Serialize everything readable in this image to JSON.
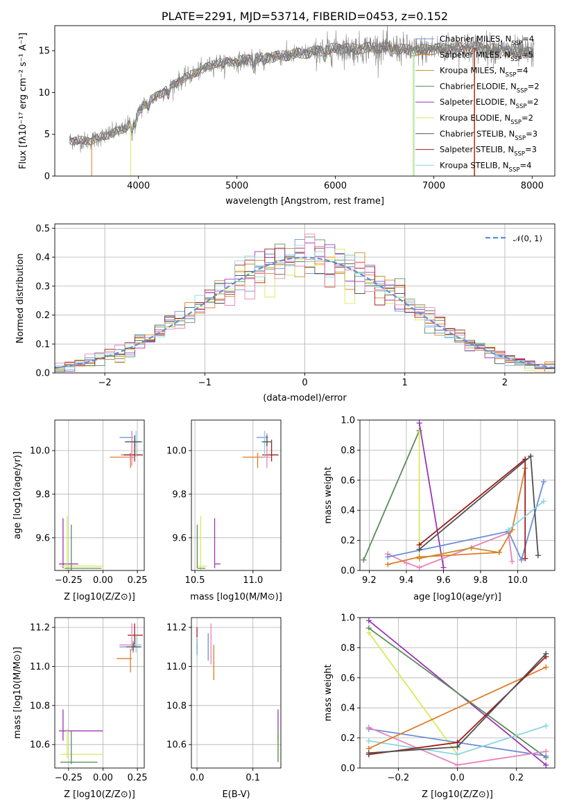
{
  "palette": {
    "chab_miles": "#6a8fd8",
    "salp_miles": "#e07b28",
    "krou_miles": "#c68c22",
    "chab_elodie": "#5b8a5b",
    "salp_elodie": "#9b35b5",
    "krou_elodie": "#d7ea5a",
    "chab_stelib": "#505050",
    "salp_stelib": "#a01c1c",
    "krou_stelib": "#88d6df",
    "pink": "#e882b9",
    "gauss": "#5b8fd6"
  },
  "chart_data": [
    {
      "id": "spectrum",
      "type": "line",
      "title": "PLATE=2291, MJD=53714, FIBERID=0453, z=0.152",
      "xlabel": "wavelength [Angstrom, rest frame]",
      "ylabel": "Flux [fλ10⁻¹⁷ erg cm⁻² s⁻¹ A⁻¹]",
      "xlim": [
        3150,
        8230
      ],
      "ylim": [
        0,
        18
      ],
      "xticks": [
        4000,
        5000,
        6000,
        7000,
        8000
      ],
      "yticks": [
        0,
        5,
        10,
        15
      ],
      "grid": false,
      "legend_position": "top-right",
      "continuum": {
        "x": [
          3300,
          3500,
          3700,
          3850,
          3950,
          4050,
          4200,
          4400,
          4600,
          4800,
          5000,
          5200,
          5400,
          5600,
          5800,
          6000,
          6200,
          6400,
          6600,
          6800,
          7000,
          7200,
          7400,
          7600,
          7800,
          8000
        ],
        "y": [
          4.3,
          4.2,
          5.0,
          5.6,
          6.8,
          8.5,
          9.7,
          11.3,
          12.5,
          13.6,
          13.7,
          14.1,
          14.3,
          14.6,
          14.9,
          15.3,
          15.2,
          15.4,
          15.3,
          15.0,
          15.2,
          15.3,
          15.4,
          15.2,
          14.9,
          14.7
        ]
      },
      "series": [
        {
          "name": "Chabrier MILES, N_SSP=4",
          "color": "chab_miles"
        },
        {
          "name": "Salpeter MILES, N_SSP=5",
          "color": "salp_miles"
        },
        {
          "name": "Kroupa MILES, N_SSP=4",
          "color": "krou_miles"
        },
        {
          "name": "Chabrier ELODIE, N_SSP=2",
          "color": "chab_elodie"
        },
        {
          "name": "Salpeter ELODIE, N_SSP=2",
          "color": "salp_elodie"
        },
        {
          "name": "Kroupa ELODIE, N_SSP=2",
          "color": "krou_elodie"
        },
        {
          "name": "Chabrier STELIB, N_SSP=3",
          "color": "chab_stelib"
        },
        {
          "name": "Salpeter STELIB, N_SSP=3",
          "color": "salp_stelib"
        },
        {
          "name": "Kroupa STELIB, N_SSP=4",
          "color": "krou_stelib"
        }
      ]
    },
    {
      "id": "residuals",
      "type": "line",
      "xlabel": "(data-model)/error",
      "ylabel": "Normed distribution",
      "xlim": [
        -2.5,
        2.5
      ],
      "ylim": [
        0,
        0.515
      ],
      "xticks": [
        -2,
        -1,
        0,
        1,
        2
      ],
      "yticks": [
        0,
        0.1,
        0.2,
        0.3,
        0.4,
        0.5
      ],
      "grid": true,
      "legend_position": "top-right",
      "gaussian_label": "𝒩(0, 1)",
      "bin_width": 0.1
    },
    {
      "id": "age_vs_Z",
      "type": "scatter",
      "xlabel": "Z [log10(Z/Z⊙)]",
      "ylabel": "age  [log10(age/yr)]",
      "xlim": [
        -0.35,
        0.3
      ],
      "ylim": [
        9.45,
        10.14
      ],
      "xticks": [
        -0.25,
        0.0,
        0.25
      ],
      "yticks": [
        9.6,
        9.8,
        10.0
      ],
      "grid": true,
      "points": [
        {
          "color": "chab_miles",
          "x": 0.21,
          "y": 10.06,
          "xerr": [
            0.09,
            0.01
          ],
          "yerr": [
            0.04,
            0.03
          ]
        },
        {
          "color": "salp_miles",
          "x": 0.2,
          "y": 9.97,
          "xerr": [
            0.15,
            0.02
          ],
          "yerr": [
            0.05,
            0.02
          ]
        },
        {
          "color": "krou_miles",
          "x": 0.21,
          "y": 9.98,
          "xerr": [
            0.08,
            0.03
          ],
          "yerr": [
            0.02,
            0.04
          ]
        },
        {
          "color": "salp_stelib",
          "x": 0.23,
          "y": 9.98,
          "xerr": [
            0.08,
            0.06
          ],
          "yerr": [
            0.03,
            0.07
          ]
        },
        {
          "color": "pink",
          "x": 0.21,
          "y": 9.97,
          "xerr": [
            0.06,
            0.02
          ],
          "yerr": [
            0.04,
            0.11
          ]
        },
        {
          "color": "krou_stelib",
          "x": 0.24,
          "y": 10.04,
          "xerr": [
            0.03,
            0.05
          ],
          "yerr": [
            0.07,
            0.05
          ]
        },
        {
          "color": "chab_stelib",
          "x": 0.23,
          "y": 10.04,
          "xerr": [
            0.07,
            0.05
          ],
          "yerr": [
            0.02,
            0.03
          ]
        },
        {
          "color": "salp_elodie",
          "x": -0.29,
          "y": 9.48,
          "xerr": [
            0.03,
            0.11
          ],
          "yerr": [
            0.02,
            0.21
          ]
        },
        {
          "color": "krou_elodie",
          "x": -0.26,
          "y": 9.47,
          "xerr": [
            0.05,
            0.26
          ],
          "yerr": [
            0.02,
            0.23
          ]
        },
        {
          "color": "chab_elodie",
          "x": -0.23,
          "y": 9.46,
          "xerr": [
            0.05,
            0.22
          ],
          "yerr": [
            0.01,
            0.2
          ]
        }
      ]
    },
    {
      "id": "age_vs_mass",
      "type": "scatter",
      "xlabel": "mass [log10(M/M⊙)]",
      "ylabel": "",
      "xlim": [
        10.47,
        11.24
      ],
      "ylim": [
        9.45,
        10.14
      ],
      "xticks": [
        10.5,
        11.0
      ],
      "yticks": [
        9.6,
        9.8,
        10.0
      ],
      "grid": true,
      "points": [
        {
          "color": "chab_miles",
          "x": 11.1,
          "y": 10.06,
          "xerr": [
            0.07,
            0.03
          ],
          "yerr": [
            0.04,
            0.03
          ]
        },
        {
          "color": "salp_miles",
          "x": 11.04,
          "y": 9.97,
          "xerr": [
            0.13,
            0.05
          ],
          "yerr": [
            0.05,
            0.02
          ]
        },
        {
          "color": "salp_stelib",
          "x": 11.16,
          "y": 9.98,
          "xerr": [
            0.08,
            0.06
          ],
          "yerr": [
            0.03,
            0.07
          ]
        },
        {
          "color": "pink",
          "x": 11.12,
          "y": 9.97,
          "xerr": [
            0.03,
            0.03
          ],
          "yerr": [
            0.05,
            0.11
          ]
        },
        {
          "color": "krou_stelib",
          "x": 11.1,
          "y": 10.04,
          "xerr": [
            0.03,
            0.06
          ],
          "yerr": [
            0.07,
            0.05
          ]
        },
        {
          "color": "chab_stelib",
          "x": 11.12,
          "y": 10.04,
          "xerr": [
            0.04,
            0.04
          ],
          "yerr": [
            0.02,
            0.03
          ]
        },
        {
          "color": "salp_elodie",
          "x": 10.67,
          "y": 9.48,
          "xerr": [
            0.0,
            0.05
          ],
          "yerr": [
            0.02,
            0.21
          ]
        },
        {
          "color": "krou_elodie",
          "x": 10.55,
          "y": 9.47,
          "xerr": [
            0.03,
            0.05
          ],
          "yerr": [
            0.02,
            0.23
          ]
        },
        {
          "color": "chab_elodie",
          "x": 10.52,
          "y": 9.46,
          "xerr": [
            0.0,
            0.07
          ],
          "yerr": [
            0.0,
            0.2
          ]
        }
      ]
    },
    {
      "id": "weight_vs_age",
      "type": "line",
      "xlabel": "age  [log10(age/yr)]",
      "ylabel": "mass weight",
      "xlim": [
        9.15,
        10.2
      ],
      "ylim": [
        0,
        1.0
      ],
      "xticks": [
        9.2,
        9.4,
        9.6,
        9.8,
        10.0
      ],
      "yticks": [
        0.0,
        0.2,
        0.4,
        0.6,
        0.8,
        1.0
      ],
      "grid": true,
      "series": [
        {
          "color": "chab_elodie",
          "x": [
            9.17,
            9.47
          ],
          "y": [
            0.07,
            0.93
          ]
        },
        {
          "color": "krou_elodie",
          "x": [
            9.47,
            9.47
          ],
          "y": [
            0.08,
            0.92
          ]
        },
        {
          "color": "salp_elodie",
          "x": [
            9.47,
            9.6
          ],
          "y": [
            0.98,
            0.02
          ]
        },
        {
          "color": "pink",
          "x": [
            9.3,
            9.4,
            9.47,
            9.95,
            9.97
          ],
          "y": [
            0.11,
            0.05,
            0.02,
            0.25,
            0.06
          ]
        },
        {
          "color": "chab_miles",
          "x": [
            9.3,
            9.95,
            10.02,
            10.14
          ],
          "y": [
            0.09,
            0.26,
            0.07,
            0.59
          ]
        },
        {
          "color": "salp_miles",
          "x": [
            9.3,
            9.47,
            9.9,
            9.97,
            10.04
          ],
          "y": [
            0.04,
            0.09,
            0.12,
            0.27,
            0.68
          ]
        },
        {
          "color": "krou_miles",
          "x": [
            9.47,
            9.75,
            9.9
          ],
          "y": [
            0.08,
            0.15,
            0.12
          ]
        },
        {
          "color": "salp_stelib",
          "x": [
            9.47,
            10.04,
            10.04
          ],
          "y": [
            0.17,
            0.74,
            0.08
          ]
        },
        {
          "color": "chab_stelib",
          "x": [
            9.47,
            10.07,
            10.11
          ],
          "y": [
            0.14,
            0.76,
            0.1
          ]
        },
        {
          "color": "krou_stelib",
          "x": [
            9.95,
            10.14
          ],
          "y": [
            0.27,
            0.46
          ]
        }
      ]
    },
    {
      "id": "mass_vs_Z",
      "type": "scatter",
      "xlabel": "Z [log10(Z/Z⊙)]",
      "ylabel": "mass [log10(M/M⊙)]",
      "xlim": [
        -0.35,
        0.3
      ],
      "ylim": [
        10.48,
        11.25
      ],
      "xticks": [
        -0.25,
        0.0,
        0.25
      ],
      "yticks": [
        10.6,
        10.8,
        11.0,
        11.2
      ],
      "grid": true,
      "points": [
        {
          "color": "chab_miles",
          "x": 0.22,
          "y": 11.1,
          "xerr": [
            0.1,
            0.05
          ],
          "yerr": [
            0.03,
            0.03
          ]
        },
        {
          "color": "salp_miles",
          "x": 0.2,
          "y": 11.04,
          "xerr": [
            0.1,
            0.01
          ],
          "yerr": [
            0.07,
            0.05
          ]
        },
        {
          "color": "salp_stelib",
          "x": 0.23,
          "y": 11.16,
          "xerr": [
            0.05,
            0.06
          ],
          "yerr": [
            0.06,
            0.06
          ]
        },
        {
          "color": "pink",
          "x": 0.21,
          "y": 11.11,
          "xerr": [
            0.09,
            0.02
          ],
          "yerr": [
            0.03,
            0.11
          ]
        },
        {
          "color": "krou_stelib",
          "x": 0.24,
          "y": 11.11,
          "xerr": [
            0.03,
            0.04
          ],
          "yerr": [
            0.04,
            0.05
          ]
        },
        {
          "color": "chab_stelib",
          "x": 0.22,
          "y": 11.1,
          "xerr": [
            0.05,
            0.06
          ],
          "yerr": [
            0.02,
            0.02
          ]
        },
        {
          "color": "salp_elodie",
          "x": -0.29,
          "y": 10.67,
          "xerr": [
            0.03,
            0.29
          ],
          "yerr": [
            0.05,
            0.11
          ]
        },
        {
          "color": "krou_elodie",
          "x": -0.26,
          "y": 10.55,
          "xerr": [
            0.05,
            0.26
          ],
          "yerr": [
            0.02,
            0.13
          ]
        },
        {
          "color": "chab_elodie",
          "x": -0.23,
          "y": 10.51,
          "xerr": [
            0.08,
            0.19
          ],
          "yerr": [
            0.01,
            0.16
          ]
        }
      ]
    },
    {
      "id": "mass_vs_EBV",
      "type": "scatter",
      "xlabel": "E(B-V)",
      "ylabel": "",
      "xlim": [
        -0.01,
        0.15
      ],
      "ylim": [
        10.48,
        11.25
      ],
      "xticks": [
        0.0,
        0.1
      ],
      "yticks": [
        10.6,
        10.8,
        11.0,
        11.2
      ],
      "grid": true,
      "points": [
        {
          "color": "chab_miles",
          "x": 0.0,
          "y": 11.1,
          "xerr": [
            0,
            0
          ],
          "yerr": [
            0.04,
            0.04
          ]
        },
        {
          "color": "salp_stelib",
          "x": 0.0,
          "y": 11.13,
          "xerr": [
            0,
            0
          ],
          "yerr": [
            0.07,
            0.07
          ]
        },
        {
          "color": "chab_stelib",
          "x": 0.0,
          "y": 11.1,
          "xerr": [
            0,
            0
          ],
          "yerr": [
            0.02,
            0.02
          ]
        },
        {
          "color": "krou_stelib",
          "x": 0.0,
          "y": 11.1,
          "xerr": [
            0,
            0
          ],
          "yerr": [
            0.05,
            0.05
          ]
        },
        {
          "color": "chab_miles",
          "x": 0.02,
          "y": 11.1,
          "xerr": [
            0,
            0
          ],
          "yerr": [
            0.07,
            0.07
          ]
        },
        {
          "color": "pink",
          "x": 0.025,
          "y": 11.11,
          "xerr": [
            0,
            0
          ],
          "yerr": [
            0.1,
            0.11
          ]
        },
        {
          "color": "salp_miles",
          "x": 0.03,
          "y": 11.04,
          "xerr": [
            0,
            0
          ],
          "yerr": [
            0.11,
            0.07
          ]
        },
        {
          "color": "salp_elodie",
          "x": 0.145,
          "y": 10.67,
          "xerr": [
            0,
            0
          ],
          "yerr": [
            0.05,
            0.11
          ]
        },
        {
          "color": "krou_elodie",
          "x": 0.145,
          "y": 10.55,
          "xerr": [
            0,
            0
          ],
          "yerr": [
            0.03,
            0.12
          ]
        },
        {
          "color": "chab_elodie",
          "x": 0.145,
          "y": 10.51,
          "xerr": [
            0,
            0
          ],
          "yerr": [
            0.0,
            0.16
          ]
        }
      ]
    },
    {
      "id": "weight_vs_Z",
      "type": "line",
      "xlabel": "Z [log10(Z/Z⊙)]",
      "ylabel": "mass weight",
      "xlim": [
        -0.33,
        0.33
      ],
      "ylim": [
        0,
        1.0
      ],
      "xticks": [
        -0.2,
        0.0,
        0.2
      ],
      "yticks": [
        0.0,
        0.2,
        0.4,
        0.6,
        0.8,
        1.0
      ],
      "grid": true,
      "series": [
        {
          "color": "salp_elodie",
          "x": [
            -0.3,
            0.3
          ],
          "y": [
            0.98,
            0.02
          ]
        },
        {
          "color": "chab_elodie",
          "x": [
            -0.3,
            0.3
          ],
          "y": [
            0.93,
            0.07
          ]
        },
        {
          "color": "krou_elodie",
          "x": [
            -0.3,
            0.0
          ],
          "y": [
            0.9,
            0.09
          ]
        },
        {
          "color": "chab_miles",
          "x": [
            -0.3,
            0.0,
            0.3
          ],
          "y": [
            0.26,
            0.17,
            0.08
          ]
        },
        {
          "color": "pink",
          "x": [
            -0.3,
            0.0,
            0.3
          ],
          "y": [
            0.27,
            0.02,
            0.11
          ]
        },
        {
          "color": "krou_stelib",
          "x": [
            -0.3,
            0.0,
            0.3
          ],
          "y": [
            0.18,
            0.09,
            0.28
          ]
        },
        {
          "color": "salp_miles",
          "x": [
            -0.3,
            0.3
          ],
          "y": [
            0.13,
            0.67
          ]
        },
        {
          "color": "salp_stelib",
          "x": [
            -0.3,
            0.0,
            0.3
          ],
          "y": [
            0.09,
            0.17,
            0.74
          ]
        },
        {
          "color": "chab_stelib",
          "x": [
            -0.3,
            0.0,
            0.3
          ],
          "y": [
            0.1,
            0.14,
            0.76
          ]
        }
      ]
    }
  ]
}
